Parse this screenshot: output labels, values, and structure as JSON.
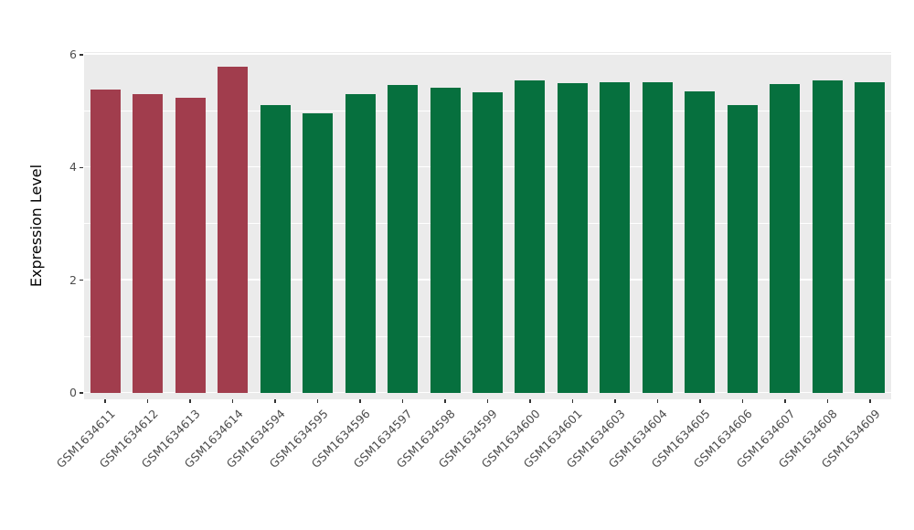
{
  "chart_data": {
    "type": "bar",
    "title": "",
    "xlabel": "",
    "ylabel": "Expression Level",
    "ylim": [
      0,
      6
    ],
    "yticks": [
      0,
      2,
      4,
      6
    ],
    "yticks_minor": [
      1,
      3,
      5
    ],
    "grid": "white major and minor horizontal gridlines on gray panel",
    "legend_position": "none",
    "categories": [
      "GSM1634611",
      "GSM1634612",
      "GSM1634613",
      "GSM1634614",
      "GSM1634594",
      "GSM1634595",
      "GSM1634596",
      "GSM1634597",
      "GSM1634598",
      "GSM1634599",
      "GSM1634600",
      "GSM1634601",
      "GSM1634603",
      "GSM1634604",
      "GSM1634605",
      "GSM1634606",
      "GSM1634607",
      "GSM1634608",
      "GSM1634609"
    ],
    "values": [
      5.38,
      5.3,
      5.23,
      5.79,
      5.1,
      4.97,
      5.31,
      5.46,
      5.41,
      5.33,
      5.54,
      5.49,
      5.51,
      5.52,
      5.35,
      5.1,
      5.48,
      5.54,
      5.51
    ],
    "bar_groups": [
      "group1",
      "group1",
      "group1",
      "group1",
      "group2",
      "group2",
      "group2",
      "group2",
      "group2",
      "group2",
      "group2",
      "group2",
      "group2",
      "group2",
      "group2",
      "group2",
      "group2",
      "group2",
      "group2"
    ],
    "group_colors": {
      "group1": "#A13D4D",
      "group2": "#06703E"
    },
    "panel_background": "#EBEBEB",
    "gridline_color": "#FFFFFF",
    "axis_text_color": "#4D4D4D"
  }
}
